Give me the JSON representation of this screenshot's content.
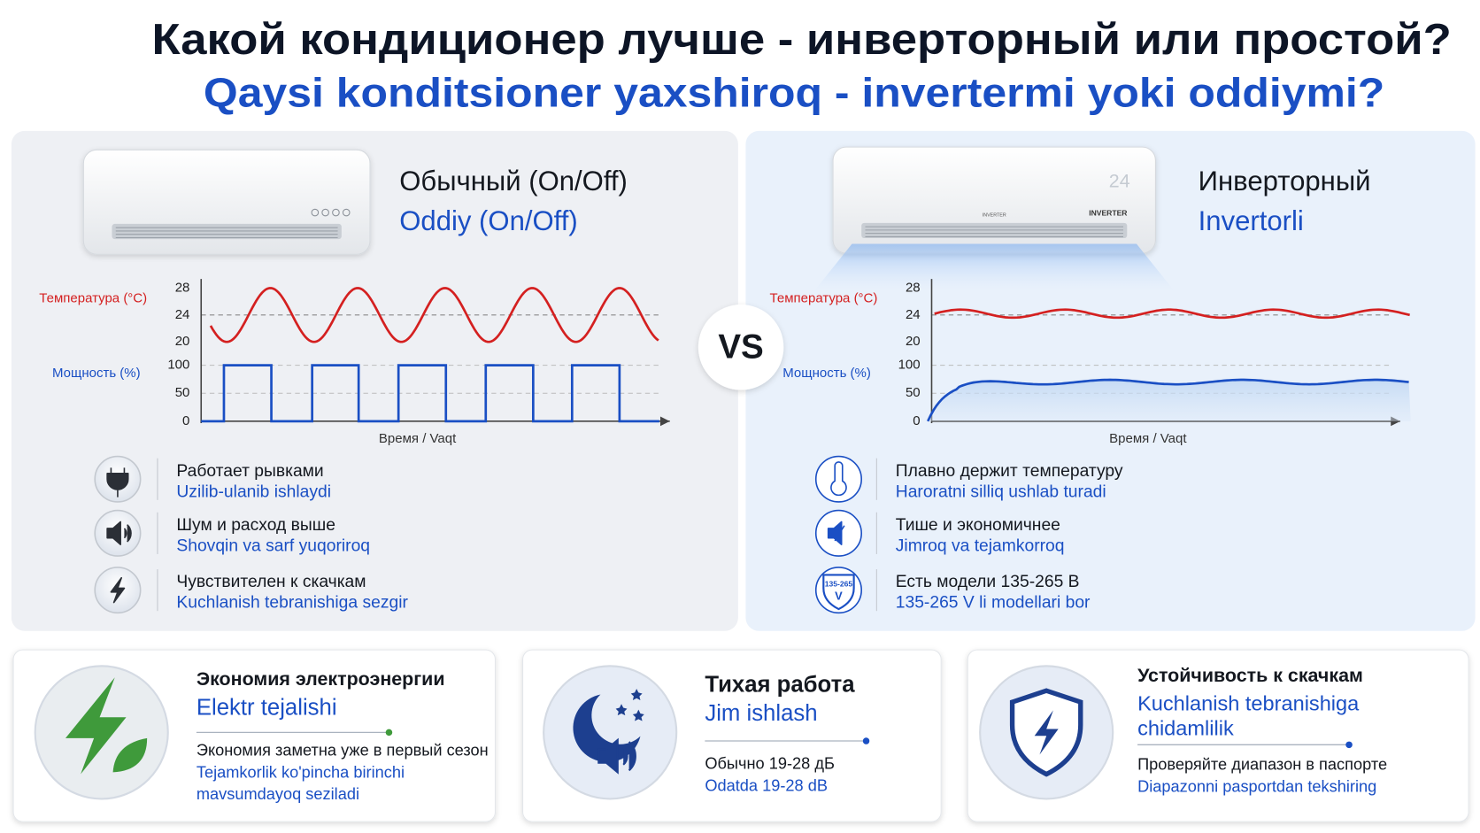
{
  "header": {
    "title": "Какой кондиционер лучше - инверторный или простой?",
    "subtitle": "Qaysi konditsioner yaxshiroq - invertermi yoki oddiymi?"
  },
  "vs": "VS",
  "panels": [
    {
      "title_ru": "Обычный (On/Off)",
      "title_uz": "Oddiy (On/Off)",
      "temp_label": "Температура (°C)",
      "power_label": "Мощность (%)",
      "time_label": "Время / Vaqt",
      "temp_ticks": [
        28,
        24,
        20
      ],
      "power_ticks": [
        100,
        50,
        0
      ],
      "features": [
        {
          "ru": "Работает рывками",
          "uz": "Uzilib-ulanib ishlaydi"
        },
        {
          "ru": "Шум и расход выше",
          "uz": "Shovqin va sarf yuqoriroq"
        },
        {
          "ru": "Чувствителен к скачкам",
          "uz": "Kuchlanish tebranishiga sezgir"
        }
      ]
    },
    {
      "title_ru": "Инверторный",
      "title_uz": "Invertorli",
      "unit_display": "24",
      "unit_badge": "INVERTER",
      "temp_label": "Температура (°C)",
      "power_label": "Мощность (%)",
      "time_label": "Время / Vaqt",
      "temp_ticks": [
        28,
        24,
        20
      ],
      "power_ticks": [
        100,
        50,
        0
      ],
      "features": [
        {
          "ru": "Плавно держит температуру",
          "uz": "Haroratni silliq ushlab turadi"
        },
        {
          "ru": "Тише и экономичнее",
          "uz": "Jimroq va tejamkorroq"
        },
        {
          "ru": "Есть модели 135-265 В",
          "uz": "135-265 V li modellari bor",
          "icon_range": "135-265",
          "icon_unit": "V"
        }
      ]
    }
  ],
  "cards": [
    {
      "title_ru": "Экономия электроэнергии",
      "title_uz_lines": [
        "Elektr tejalishi"
      ],
      "text_ru_lines": [
        "Экономия заметна уже в первый сезон"
      ],
      "text_uz_lines": [
        "Tejamkorlik ko'pincha birinchi",
        "mavsumdayoq seziladi"
      ]
    },
    {
      "title_ru": "Тихая работа",
      "title_uz_lines": [
        "Jim ishlash"
      ],
      "text_ru_lines": [
        "Обычно 19-28 дБ"
      ],
      "text_uz_lines": [
        "Odatda 19-28 dB"
      ]
    },
    {
      "title_ru": "Устойчивость к скачкам",
      "title_uz_lines": [
        "Kuchlanish tebranishiga",
        "chidamlilik"
      ],
      "text_ru_lines": [
        "Проверяйте диапазон в паспорте"
      ],
      "text_uz_lines": [
        "Diapazonni pasportdan tekshiring"
      ]
    }
  ]
}
